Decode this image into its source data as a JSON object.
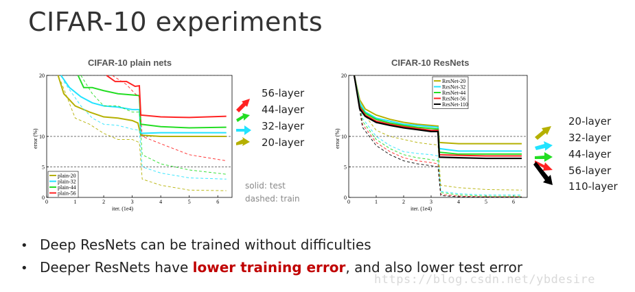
{
  "slide": {
    "title": "CIFAR-10 experiments",
    "bullets": [
      {
        "pre": "Deep ResNets can be trained without difficulties",
        "highlight": "",
        "post": ""
      },
      {
        "pre": "Deeper ResNets have ",
        "highlight": "lower training error",
        "post": ", and also lower test error"
      }
    ],
    "watermark": "https://blog.csdn.net/ybdesire",
    "note": [
      "solid: test",
      "dashed: train"
    ],
    "colors": {
      "highlight": "#c00000"
    }
  },
  "chart_data": [
    {
      "type": "line",
      "title": "CIFAR-10 plain nets",
      "xlabel": "iter. (1e4)",
      "ylabel": "error (%)",
      "xlim": [
        0,
        6.5
      ],
      "ylim": [
        0,
        20
      ],
      "xticks": [
        "0",
        "1",
        "2",
        "3",
        "4",
        "5",
        "6"
      ],
      "yticks": [
        "0",
        "5",
        "10",
        "20"
      ],
      "legend_position": "bottom-left",
      "annotations": [
        "56-layer",
        "44-layer",
        "32-layer",
        "20-layer"
      ],
      "series": [
        {
          "name": "plain-20",
          "color": "#b5b000",
          "test": [
            [
              0.4,
              20
            ],
            [
              0.6,
              17
            ],
            [
              1.0,
              15
            ],
            [
              1.5,
              14
            ],
            [
              2.0,
              13.2
            ],
            [
              2.5,
              13
            ],
            [
              3.0,
              12.6
            ],
            [
              3.2,
              12.2
            ],
            [
              3.3,
              10.2
            ],
            [
              4,
              10
            ],
            [
              5,
              10
            ],
            [
              6.3,
              10
            ]
          ],
          "train": [
            [
              0.5,
              19
            ],
            [
              1,
              13
            ],
            [
              1.5,
              12
            ],
            [
              2,
              10.5
            ],
            [
              2.5,
              9.5
            ],
            [
              3,
              9.5
            ],
            [
              3.25,
              9
            ],
            [
              3.35,
              3
            ],
            [
              4,
              2
            ],
            [
              5,
              1.2
            ],
            [
              6.3,
              1.1
            ]
          ]
        },
        {
          "name": "plain-32",
          "color": "#22e3ff",
          "test": [
            [
              0.5,
              20
            ],
            [
              0.8,
              18
            ],
            [
              1.2,
              16.5
            ],
            [
              1.6,
              15.5
            ],
            [
              2,
              15
            ],
            [
              2.5,
              14.8
            ],
            [
              3,
              14.4
            ],
            [
              3.25,
              14.4
            ],
            [
              3.3,
              10.5
            ],
            [
              4,
              10.6
            ],
            [
              5,
              10.6
            ],
            [
              6.3,
              10.6
            ]
          ],
          "train": [
            [
              0.6,
              19
            ],
            [
              1.2,
              15
            ],
            [
              1.6,
              13
            ],
            [
              2,
              12
            ],
            [
              2.5,
              11.8
            ],
            [
              3,
              11.2
            ],
            [
              3.25,
              11
            ],
            [
              3.35,
              5
            ],
            [
              4,
              4
            ],
            [
              5,
              3.2
            ],
            [
              6.3,
              3
            ]
          ]
        },
        {
          "name": "plain-44",
          "color": "#22dd22",
          "test": [
            [
              1.1,
              20
            ],
            [
              1.3,
              18
            ],
            [
              1.6,
              18
            ],
            [
              2,
              17.5
            ],
            [
              2.5,
              17
            ],
            [
              3,
              16.8
            ],
            [
              3.25,
              16.7
            ],
            [
              3.3,
              12
            ],
            [
              4,
              11.6
            ],
            [
              5,
              11.4
            ],
            [
              6.3,
              11.5
            ]
          ],
          "train": [
            [
              1.2,
              20
            ],
            [
              1.6,
              17
            ],
            [
              2,
              15
            ],
            [
              2.5,
              15
            ],
            [
              3,
              14
            ],
            [
              3.25,
              14
            ],
            [
              3.35,
              7
            ],
            [
              4,
              5.5
            ],
            [
              5,
              4.5
            ],
            [
              6.3,
              3.8
            ]
          ]
        },
        {
          "name": "plain-56",
          "color": "#ff2222",
          "test": [
            [
              2.1,
              20
            ],
            [
              2.4,
              19
            ],
            [
              2.8,
              19
            ],
            [
              3.1,
              18.2
            ],
            [
              3.25,
              18.3
            ],
            [
              3.3,
              13.5
            ],
            [
              4,
              13.2
            ],
            [
              5,
              13.1
            ],
            [
              6.3,
              13.3
            ]
          ],
          "train": [
            [
              2.3,
              20
            ],
            [
              2.8,
              18.5
            ],
            [
              3.1,
              17
            ],
            [
              3.25,
              16.5
            ],
            [
              3.35,
              10
            ],
            [
              4,
              8.8
            ],
            [
              5,
              7
            ],
            [
              6.3,
              6
            ]
          ]
        }
      ]
    },
    {
      "type": "line",
      "title": "CIFAR-10 ResNets",
      "xlabel": "iter. (1e4)",
      "ylabel": "error (%)",
      "xlim": [
        0,
        6.5
      ],
      "ylim": [
        0,
        20
      ],
      "xticks": [
        "0",
        "1",
        "2",
        "3",
        "4",
        "5",
        "6"
      ],
      "yticks": [
        "0",
        "5",
        "10",
        "20"
      ],
      "legend_position": "top-left",
      "annotations": [
        "20-layer",
        "32-layer",
        "44-layer",
        "56-layer",
        "110-layer"
      ],
      "series": [
        {
          "name": "ResNet-20",
          "color": "#b5b000",
          "test": [
            [
              0.2,
              20
            ],
            [
              0.4,
              16
            ],
            [
              0.6,
              14.5
            ],
            [
              1,
              13.5
            ],
            [
              1.5,
              12.8
            ],
            [
              2,
              12.3
            ],
            [
              2.5,
              12
            ],
            [
              3,
              11.8
            ],
            [
              3.25,
              11.7
            ],
            [
              3.3,
              9
            ],
            [
              4,
              8.8
            ],
            [
              5,
              8.8
            ],
            [
              6.3,
              8.8
            ]
          ],
          "train": [
            [
              0.2,
              20
            ],
            [
              0.5,
              14
            ],
            [
              1,
              11
            ],
            [
              1.5,
              10
            ],
            [
              2,
              9.5
            ],
            [
              2.5,
              9
            ],
            [
              3,
              8.7
            ],
            [
              3.25,
              8.6
            ],
            [
              3.35,
              2
            ],
            [
              4,
              1.6
            ],
            [
              5,
              1.3
            ],
            [
              6.3,
              1.2
            ]
          ]
        },
        {
          "name": "ResNet-32",
          "color": "#22e3ff",
          "test": [
            [
              0.2,
              20
            ],
            [
              0.4,
              15.5
            ],
            [
              0.6,
              14
            ],
            [
              1,
              13
            ],
            [
              1.5,
              12.5
            ],
            [
              2,
              12
            ],
            [
              2.5,
              11.8
            ],
            [
              3,
              11.6
            ],
            [
              3.25,
              11.5
            ],
            [
              3.3,
              8
            ],
            [
              4,
              7.6
            ],
            [
              5,
              7.6
            ],
            [
              6.3,
              7.6
            ]
          ],
          "train": [
            [
              0.2,
              20
            ],
            [
              0.5,
              13
            ],
            [
              1,
              10
            ],
            [
              1.5,
              8.5
            ],
            [
              2,
              7.5
            ],
            [
              2.5,
              7.2
            ],
            [
              3,
              7
            ],
            [
              3.25,
              6.8
            ],
            [
              3.35,
              1
            ],
            [
              4,
              0.6
            ],
            [
              5,
              0.4
            ],
            [
              6.3,
              0.4
            ]
          ]
        },
        {
          "name": "ResNet-44",
          "color": "#22dd22",
          "test": [
            [
              0.2,
              20
            ],
            [
              0.4,
              15
            ],
            [
              0.6,
              13.8
            ],
            [
              1,
              12.8
            ],
            [
              1.5,
              12.2
            ],
            [
              2,
              11.8
            ],
            [
              2.5,
              11.5
            ],
            [
              3,
              11.3
            ],
            [
              3.25,
              11.2
            ],
            [
              3.3,
              7.4
            ],
            [
              4,
              7.1
            ],
            [
              5,
              7.1
            ],
            [
              6.3,
              7.1
            ]
          ],
          "train": [
            [
              0.2,
              20
            ],
            [
              0.5,
              12.5
            ],
            [
              1,
              9.5
            ],
            [
              1.5,
              8
            ],
            [
              2,
              7
            ],
            [
              2.5,
              6.5
            ],
            [
              3,
              6.2
            ],
            [
              3.25,
              6
            ],
            [
              3.35,
              0.8
            ],
            [
              4,
              0.4
            ],
            [
              5,
              0.2
            ],
            [
              6.3,
              0.2
            ]
          ]
        },
        {
          "name": "ResNet-56",
          "color": "#ff2222",
          "test": [
            [
              0.2,
              20
            ],
            [
              0.4,
              14.8
            ],
            [
              0.6,
              13.5
            ],
            [
              1,
              12.5
            ],
            [
              1.5,
              12
            ],
            [
              2,
              11.6
            ],
            [
              2.5,
              11.3
            ],
            [
              3,
              11
            ],
            [
              3.25,
              11
            ],
            [
              3.3,
              7
            ],
            [
              4,
              6.9
            ],
            [
              5,
              6.8
            ],
            [
              6.3,
              6.8
            ]
          ],
          "train": [
            [
              0.2,
              20
            ],
            [
              0.5,
              12
            ],
            [
              1,
              9
            ],
            [
              1.5,
              7.5
            ],
            [
              2,
              6.5
            ],
            [
              2.5,
              6
            ],
            [
              3,
              5.7
            ],
            [
              3.25,
              5.5
            ],
            [
              3.35,
              0.5
            ],
            [
              4,
              0.2
            ],
            [
              5,
              0.1
            ],
            [
              6.3,
              0.1
            ]
          ]
        },
        {
          "name": "ResNet-110",
          "color": "#000000",
          "test": [
            [
              0.2,
              20
            ],
            [
              0.4,
              14.5
            ],
            [
              0.6,
              13.3
            ],
            [
              1,
              12.3
            ],
            [
              1.5,
              11.8
            ],
            [
              2,
              11.4
            ],
            [
              2.5,
              11.1
            ],
            [
              3,
              10.8
            ],
            [
              3.25,
              10.8
            ],
            [
              3.3,
              6.6
            ],
            [
              4,
              6.5
            ],
            [
              5,
              6.4
            ],
            [
              6.3,
              6.4
            ]
          ],
          "train": [
            [
              0.2,
              20
            ],
            [
              0.5,
              11.5
            ],
            [
              1,
              8.5
            ],
            [
              1.5,
              7
            ],
            [
              2,
              6
            ],
            [
              2.5,
              5.5
            ],
            [
              3,
              5.2
            ],
            [
              3.25,
              5
            ],
            [
              3.35,
              0.3
            ],
            [
              4,
              0.1
            ],
            [
              5,
              0.05
            ],
            [
              6.3,
              0.05
            ]
          ]
        }
      ]
    }
  ]
}
